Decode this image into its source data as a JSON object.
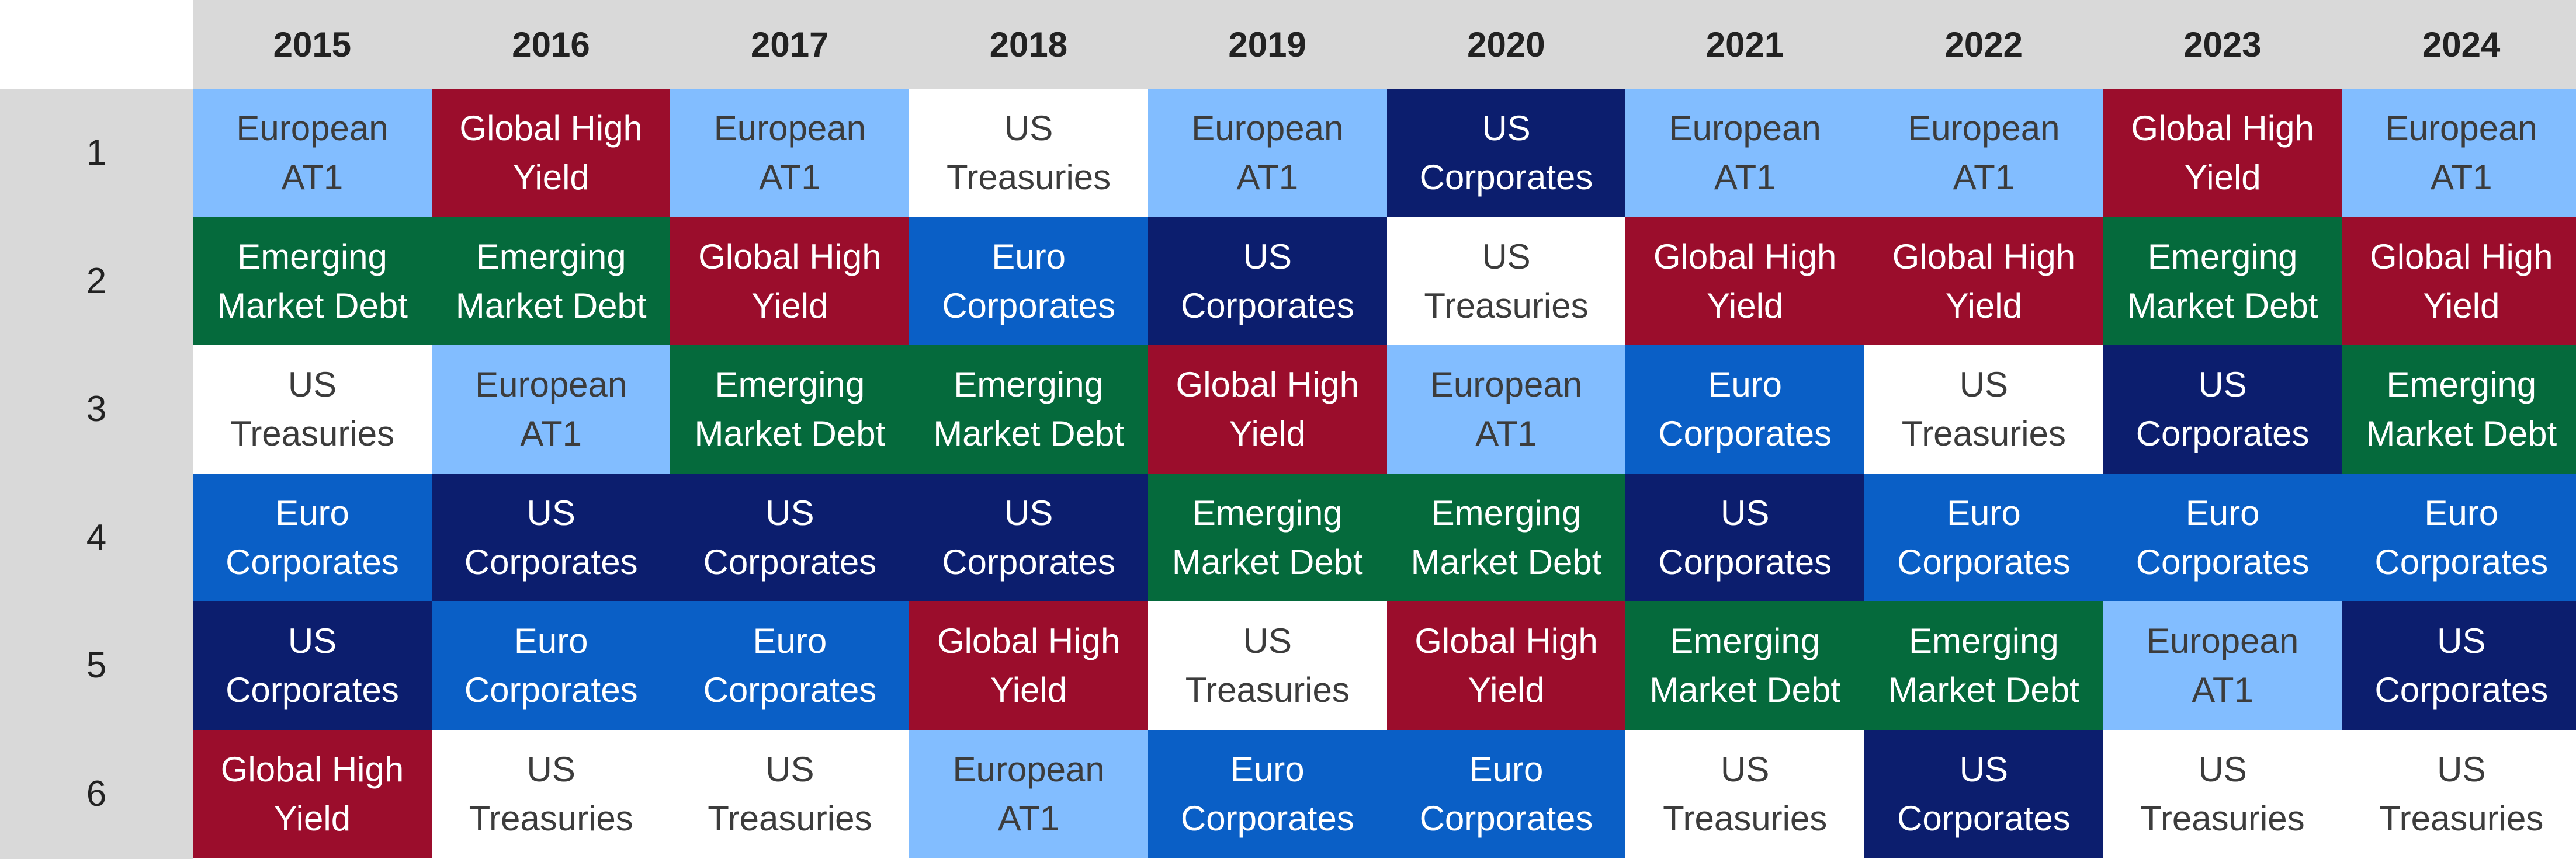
{
  "chart_data": {
    "type": "table",
    "title": "",
    "years": [
      "2015",
      "2016",
      "2017",
      "2018",
      "2019",
      "2020",
      "2021",
      "2022",
      "2023",
      "2024"
    ],
    "ranks": [
      "1",
      "2",
      "3",
      "4",
      "5",
      "6"
    ],
    "categories": {
      "at1": {
        "label": "European\nAT1",
        "color": "#82bdff",
        "text_color": "#3c3c3c"
      },
      "ghy": {
        "label": "Global High\nYield",
        "color": "#9b0d2c",
        "text_color": "#ffffff"
      },
      "emd": {
        "label": "Emerging\nMarket Debt",
        "color": "#056a3c",
        "text_color": "#ffffff"
      },
      "ust": {
        "label": "US\nTreasuries",
        "color": "#ffffff",
        "text_color": "#3c3c3c"
      },
      "usc": {
        "label": "US\nCorporates",
        "color": "#0c1e6e",
        "text_color": "#ffffff"
      },
      "euro": {
        "label": "Euro\nCorporates",
        "color": "#0a5fc6",
        "text_color": "#ffffff"
      }
    },
    "columns": [
      [
        "at1",
        "emd",
        "ust",
        "euro",
        "usc",
        "ghy"
      ],
      [
        "ghy",
        "emd",
        "at1",
        "usc",
        "euro",
        "ust"
      ],
      [
        "at1",
        "ghy",
        "emd",
        "usc",
        "euro",
        "ust"
      ],
      [
        "ust",
        "euro",
        "emd",
        "usc",
        "ghy",
        "at1"
      ],
      [
        "at1",
        "usc",
        "ghy",
        "emd",
        "ust",
        "euro"
      ],
      [
        "usc",
        "ust",
        "at1",
        "emd",
        "ghy",
        "euro"
      ],
      [
        "at1",
        "ghy",
        "euro",
        "usc",
        "emd",
        "ust"
      ],
      [
        "at1",
        "ghy",
        "ust",
        "euro",
        "emd",
        "usc"
      ],
      [
        "ghy",
        "emd",
        "usc",
        "euro",
        "at1",
        "ust"
      ],
      [
        "at1",
        "ghy",
        "emd",
        "euro",
        "usc",
        "ust"
      ]
    ]
  }
}
